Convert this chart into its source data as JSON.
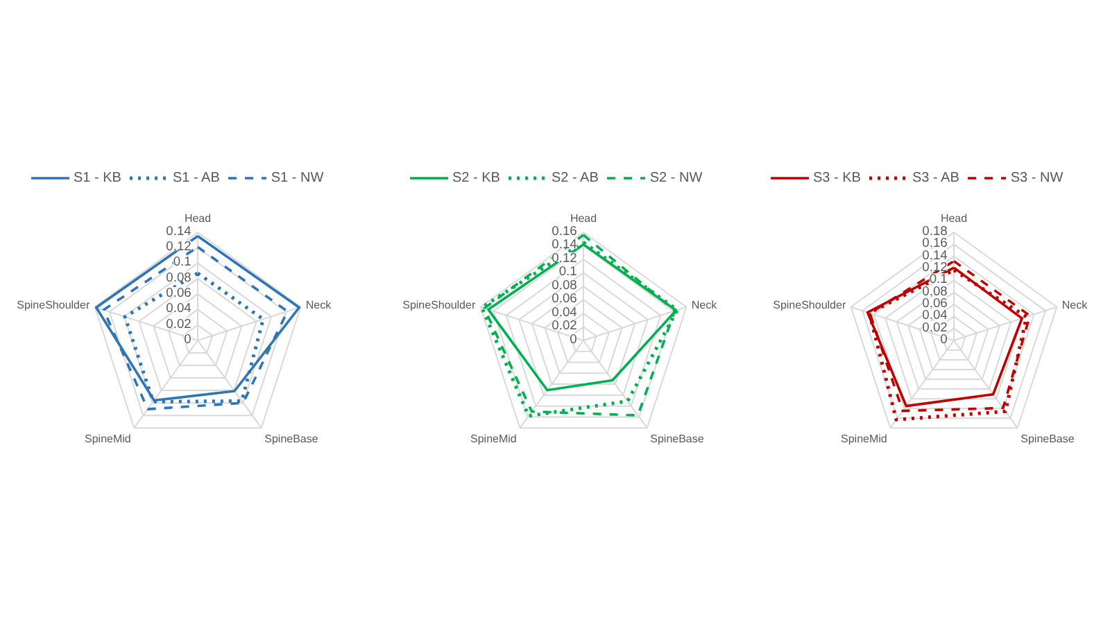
{
  "chart_data": [
    {
      "type": "radar",
      "categories": [
        "Head",
        "Neck",
        "SpineBase",
        "SpineMid",
        "SpineShoulder"
      ],
      "ylim": [
        0,
        0.14
      ],
      "yticks": [
        0,
        0.02,
        0.04,
        0.06,
        0.08,
        0.1,
        0.12,
        0.14
      ],
      "grid": true,
      "legend": "top",
      "series": [
        {
          "name": "S1 - KB",
          "color": "#2e75b6",
          "line_style": "solid",
          "values": [
            0.135,
            0.138,
            0.081,
            0.096,
            0.138
          ]
        },
        {
          "name": "S1 - AB",
          "color": "#2e75b6",
          "line_style": "dotted",
          "values": [
            0.087,
            0.089,
            0.097,
            0.098,
            0.099
          ]
        },
        {
          "name": "S1 - NW",
          "color": "#2e75b6",
          "line_style": "dashed",
          "values": [
            0.121,
            0.122,
            0.1,
            0.11,
            0.128
          ]
        }
      ]
    },
    {
      "type": "radar",
      "categories": [
        "Head",
        "Neck",
        "SpineBase",
        "SpineMid",
        "SpineShoulder"
      ],
      "ylim": [
        0,
        0.16
      ],
      "yticks": [
        0,
        0.02,
        0.04,
        0.06,
        0.08,
        0.1,
        0.12,
        0.14,
        0.16
      ],
      "grid": true,
      "legend": "top",
      "series": [
        {
          "name": "S2 - KB",
          "color": "#00b050",
          "line_style": "solid",
          "values": [
            0.142,
            0.144,
            0.073,
            0.091,
            0.148
          ]
        },
        {
          "name": "S2 - AB",
          "color": "#00b050",
          "line_style": "dotted",
          "values": [
            0.145,
            0.146,
            0.111,
            0.138,
            0.158
          ]
        },
        {
          "name": "S2 - NW",
          "color": "#00b050",
          "line_style": "dashed",
          "values": [
            0.156,
            0.142,
            0.137,
            0.13,
            0.154
          ]
        }
      ]
    },
    {
      "type": "radar",
      "categories": [
        "Head",
        "Neck",
        "SpineBase",
        "SpineMid",
        "SpineShoulder"
      ],
      "ylim": [
        0,
        0.18
      ],
      "yticks": [
        0,
        0.02,
        0.04,
        0.06,
        0.08,
        0.1,
        0.12,
        0.14,
        0.16,
        0.18
      ],
      "grid": true,
      "legend": "top",
      "series": [
        {
          "name": "S3 - KB",
          "color": "#c00000",
          "line_style": "solid",
          "values": [
            0.121,
            0.119,
            0.111,
            0.135,
            0.151
          ]
        },
        {
          "name": "S3 - AB",
          "color": "#c00000",
          "line_style": "dotted",
          "values": [
            0.117,
            0.127,
            0.146,
            0.163,
            0.148
          ]
        },
        {
          "name": "S3 - NW",
          "color": "#c00000",
          "line_style": "dashed",
          "values": [
            0.132,
            0.133,
            0.139,
            0.145,
            0.147
          ]
        }
      ]
    }
  ]
}
